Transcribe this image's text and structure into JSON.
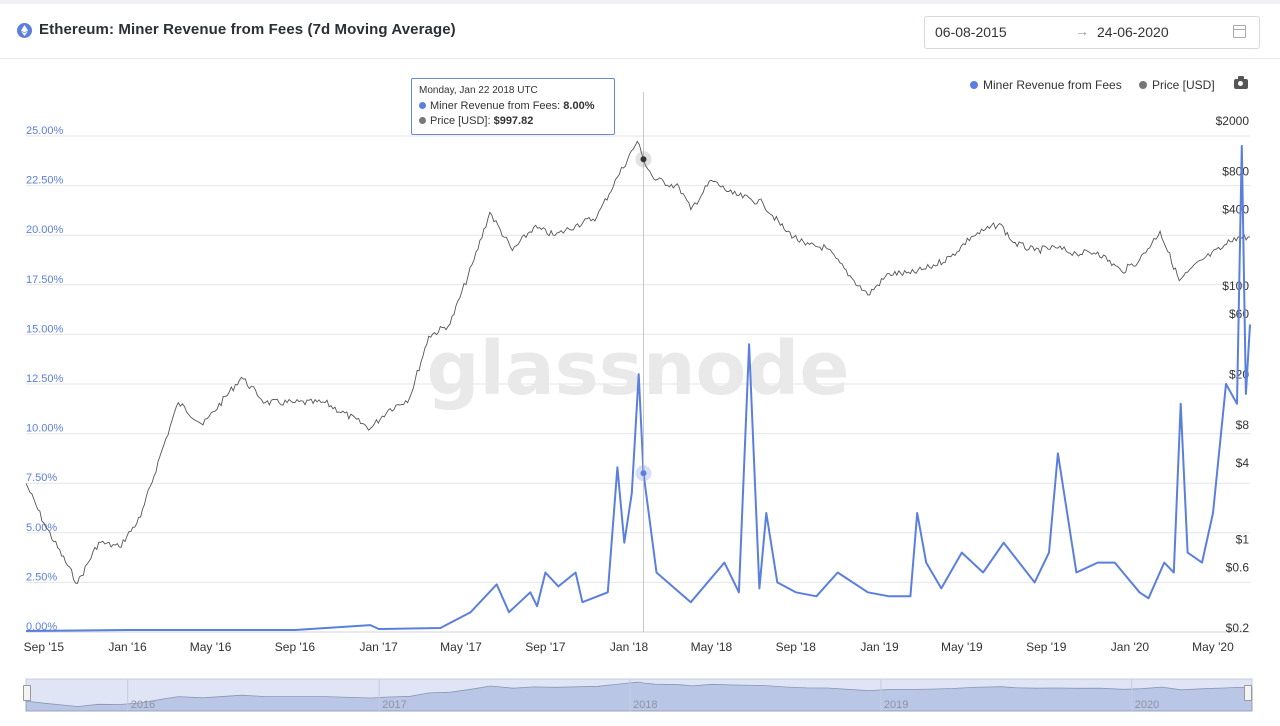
{
  "header": {
    "title": "Ethereum: Miner Revenue from Fees (7d Moving Average)",
    "date_start": "06-08-2015",
    "date_arrow": "→",
    "date_end": "24-06-2020"
  },
  "watermark": "glassnode",
  "tooltip": {
    "date": "Monday, Jan 22 2018 UTC",
    "fees_label": "Miner Revenue from Fees:",
    "fees_value": "8.00%",
    "price_label": "Price [USD]:",
    "price_value": "$997.82"
  },
  "colors": {
    "fees": "#5b7fde",
    "price": "#555555",
    "grid": "#e6e6e6",
    "left_axis": "#5b7fde"
  },
  "navigator": {
    "years": [
      "2016",
      "2017",
      "2018",
      "2019",
      "2020"
    ]
  },
  "chart_data": {
    "type": "line",
    "title": "Ethereum: Miner Revenue from Fees (7d Moving Average)",
    "x_range": [
      "2015-08-06",
      "2020-06-24"
    ],
    "x_ticks": [
      "Sep '15",
      "Jan '16",
      "May '16",
      "Sep '16",
      "Jan '17",
      "May '17",
      "Sep '17",
      "Jan '18",
      "May '18",
      "Sep '18",
      "Jan '19",
      "May '19",
      "Sep '19",
      "Jan '20",
      "May '20"
    ],
    "y_left": {
      "ticks": [
        "0.00%",
        "2.50%",
        "5.00%",
        "7.50%",
        "10.00%",
        "12.50%",
        "15.00%",
        "17.50%",
        "20.00%",
        "22.50%",
        "25.00%"
      ],
      "range": [
        0,
        25
      ]
    },
    "y_right": {
      "scale": "log",
      "ticks": [
        "$0.2",
        "$0.6",
        "$1",
        "$4",
        "$8",
        "$20",
        "$60",
        "$100",
        "$400",
        "$800",
        "$2000"
      ]
    },
    "legend": {
      "position": "top-right",
      "items": [
        "Miner Revenue from Fees",
        "Price [USD]"
      ]
    },
    "series": [
      {
        "name": "Miner Revenue from Fees",
        "axis": "left",
        "unit": "%",
        "points": [
          [
            "2015-08-06",
            0.05
          ],
          [
            "2016-01-01",
            0.1
          ],
          [
            "2016-05-01",
            0.1
          ],
          [
            "2016-09-01",
            0.1
          ],
          [
            "2016-12-20",
            0.35
          ],
          [
            "2017-01-01",
            0.15
          ],
          [
            "2017-04-01",
            0.2
          ],
          [
            "2017-05-15",
            1.0
          ],
          [
            "2017-06-22",
            2.4
          ],
          [
            "2017-07-10",
            1.0
          ],
          [
            "2017-08-10",
            2.0
          ],
          [
            "2017-08-20",
            1.3
          ],
          [
            "2017-09-01",
            3.0
          ],
          [
            "2017-09-20",
            2.3
          ],
          [
            "2017-10-15",
            3.0
          ],
          [
            "2017-10-25",
            1.5
          ],
          [
            "2017-12-01",
            2.0
          ],
          [
            "2017-12-15",
            8.3
          ],
          [
            "2017-12-25",
            4.5
          ],
          [
            "2018-01-05",
            7.0
          ],
          [
            "2018-01-15",
            13.0
          ],
          [
            "2018-01-22",
            8.0
          ],
          [
            "2018-02-10",
            3.0
          ],
          [
            "2018-03-15",
            2.0
          ],
          [
            "2018-04-01",
            1.5
          ],
          [
            "2018-05-20",
            3.5
          ],
          [
            "2018-06-10",
            2.0
          ],
          [
            "2018-06-25",
            14.5
          ],
          [
            "2018-07-10",
            2.2
          ],
          [
            "2018-07-20",
            6.0
          ],
          [
            "2018-08-05",
            2.5
          ],
          [
            "2018-09-01",
            2.0
          ],
          [
            "2018-10-01",
            1.8
          ],
          [
            "2018-11-01",
            3.0
          ],
          [
            "2018-12-15",
            2.0
          ],
          [
            "2019-01-15",
            1.8
          ],
          [
            "2019-02-15",
            1.8
          ],
          [
            "2019-02-25",
            6.0
          ],
          [
            "2019-03-10",
            3.5
          ],
          [
            "2019-04-01",
            2.2
          ],
          [
            "2019-05-01",
            4.0
          ],
          [
            "2019-06-01",
            3.0
          ],
          [
            "2019-07-01",
            4.5
          ],
          [
            "2019-08-15",
            2.5
          ],
          [
            "2019-09-05",
            4.0
          ],
          [
            "2019-09-18",
            9.0
          ],
          [
            "2019-10-15",
            3.0
          ],
          [
            "2019-11-15",
            3.5
          ],
          [
            "2019-12-10",
            3.5
          ],
          [
            "2020-01-15",
            2.0
          ],
          [
            "2020-01-28",
            1.7
          ],
          [
            "2020-02-20",
            3.5
          ],
          [
            "2020-03-05",
            3.0
          ],
          [
            "2020-03-15",
            11.5
          ],
          [
            "2020-03-25",
            4.0
          ],
          [
            "2020-04-15",
            3.5
          ],
          [
            "2020-05-01",
            6.0
          ],
          [
            "2020-05-20",
            12.5
          ],
          [
            "2020-06-05",
            11.5
          ],
          [
            "2020-06-12",
            24.5
          ],
          [
            "2020-06-18",
            12.0
          ],
          [
            "2020-06-24",
            15.5
          ]
        ]
      },
      {
        "name": "Price [USD]",
        "axis": "right",
        "unit": "USD",
        "points": [
          [
            "2015-08-06",
            2.77
          ],
          [
            "2015-09-01",
            1.35
          ],
          [
            "2015-10-20",
            0.45
          ],
          [
            "2015-11-20",
            0.95
          ],
          [
            "2015-12-20",
            0.87
          ],
          [
            "2016-01-20",
            1.5
          ],
          [
            "2016-02-20",
            5.0
          ],
          [
            "2016-03-15",
            12.0
          ],
          [
            "2016-04-20",
            8.0
          ],
          [
            "2016-06-15",
            19.0
          ],
          [
            "2016-07-20",
            12.0
          ],
          [
            "2016-09-01",
            12.0
          ],
          [
            "2016-10-15",
            12.0
          ],
          [
            "2016-12-20",
            7.5
          ],
          [
            "2017-01-15",
            10.5
          ],
          [
            "2017-02-15",
            13.0
          ],
          [
            "2017-03-15",
            40.0
          ],
          [
            "2017-04-15",
            50.0
          ],
          [
            "2017-05-20",
            160.0
          ],
          [
            "2017-06-12",
            380.0
          ],
          [
            "2017-07-15",
            190.0
          ],
          [
            "2017-08-15",
            290.0
          ],
          [
            "2017-09-15",
            250.0
          ],
          [
            "2017-10-15",
            300.0
          ],
          [
            "2017-11-15",
            350.0
          ],
          [
            "2017-12-15",
            720.0
          ],
          [
            "2018-01-13",
            1380.0
          ],
          [
            "2018-01-22",
            997.82
          ],
          [
            "2018-02-06",
            700.0
          ],
          [
            "2018-03-15",
            600.0
          ],
          [
            "2018-04-01",
            400.0
          ],
          [
            "2018-05-01",
            680.0
          ],
          [
            "2018-06-01",
            530.0
          ],
          [
            "2018-07-15",
            450.0
          ],
          [
            "2018-08-15",
            280.0
          ],
          [
            "2018-09-15",
            210.0
          ],
          [
            "2018-10-15",
            200.0
          ],
          [
            "2018-11-25",
            110.0
          ],
          [
            "2018-12-15",
            85.0
          ],
          [
            "2019-01-15",
            125.0
          ],
          [
            "2019-02-15",
            125.0
          ],
          [
            "2019-03-15",
            140.0
          ],
          [
            "2019-04-15",
            170.0
          ],
          [
            "2019-05-15",
            245.0
          ],
          [
            "2019-06-25",
            310.0
          ],
          [
            "2019-07-15",
            220.0
          ],
          [
            "2019-08-15",
            190.0
          ],
          [
            "2019-09-15",
            200.0
          ],
          [
            "2019-10-15",
            180.0
          ],
          [
            "2019-11-15",
            185.0
          ],
          [
            "2019-12-20",
            130.0
          ],
          [
            "2020-01-15",
            160.0
          ],
          [
            "2020-02-14",
            270.0
          ],
          [
            "2020-03-13",
            110.0
          ],
          [
            "2020-04-15",
            160.0
          ],
          [
            "2020-05-15",
            200.0
          ],
          [
            "2020-06-01",
            240.0
          ],
          [
            "2020-06-24",
            244.0
          ]
        ]
      }
    ],
    "hover": {
      "date": "2018-01-22"
    }
  }
}
